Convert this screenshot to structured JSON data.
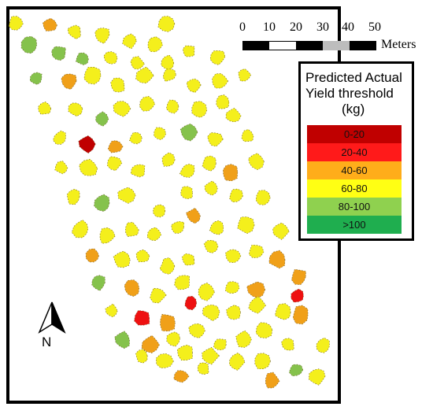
{
  "scale_bar": {
    "labels": [
      "0",
      "10",
      "20",
      "30",
      "40",
      "50"
    ],
    "unit": "Meters"
  },
  "legend": {
    "title_lines": [
      "Predicted Actual",
      "Yield threshold",
      "(kg)"
    ],
    "classes": [
      {
        "label": "0-20",
        "color": "#c00000"
      },
      {
        "label": "20-40",
        "color": "#ff1a1a"
      },
      {
        "label": "40-60",
        "color": "#ffad1a"
      },
      {
        "label": "60-80",
        "color": "#ffff14"
      },
      {
        "label": "80-100",
        "color": "#8fd14f"
      },
      {
        "label": ">100",
        "color": "#1fae4f"
      }
    ]
  },
  "north_arrow": {
    "label": "N"
  },
  "colors": {
    "c0": "#c00000",
    "c1": "#ee1111",
    "c2": "#f0a019",
    "c3": "#f4ef1c",
    "c4": "#85c24c",
    "c5": "#1fae4f"
  }
}
